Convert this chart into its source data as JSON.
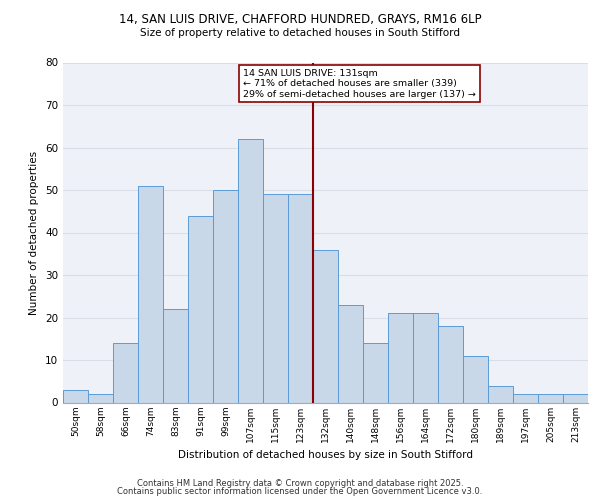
{
  "title1": "14, SAN LUIS DRIVE, CHAFFORD HUNDRED, GRAYS, RM16 6LP",
  "title2": "Size of property relative to detached houses in South Stifford",
  "xlabel": "Distribution of detached houses by size in South Stifford",
  "ylabel": "Number of detached properties",
  "categories": [
    "50sqm",
    "58sqm",
    "66sqm",
    "74sqm",
    "83sqm",
    "91sqm",
    "99sqm",
    "107sqm",
    "115sqm",
    "123sqm",
    "132sqm",
    "140sqm",
    "148sqm",
    "156sqm",
    "164sqm",
    "172sqm",
    "180sqm",
    "189sqm",
    "197sqm",
    "205sqm",
    "213sqm"
  ],
  "values": [
    3,
    2,
    14,
    51,
    22,
    44,
    50,
    62,
    49,
    49,
    36,
    23,
    14,
    21,
    21,
    18,
    11,
    4,
    2,
    2,
    2
  ],
  "bar_color": "#c8d8e8",
  "bar_edge_color": "#5b9bd5",
  "vline_color": "#8b0000",
  "annotation_text": "14 SAN LUIS DRIVE: 131sqm\n← 71% of detached houses are smaller (339)\n29% of semi-detached houses are larger (137) →",
  "annotation_box_color": "#8b0000",
  "ylim": [
    0,
    80
  ],
  "yticks": [
    0,
    10,
    20,
    30,
    40,
    50,
    60,
    70,
    80
  ],
  "grid_color": "#d8dde8",
  "bg_color": "#eef2f8",
  "footer1": "Contains HM Land Registry data © Crown copyright and database right 2025.",
  "footer2": "Contains public sector information licensed under the Open Government Licence v3.0."
}
